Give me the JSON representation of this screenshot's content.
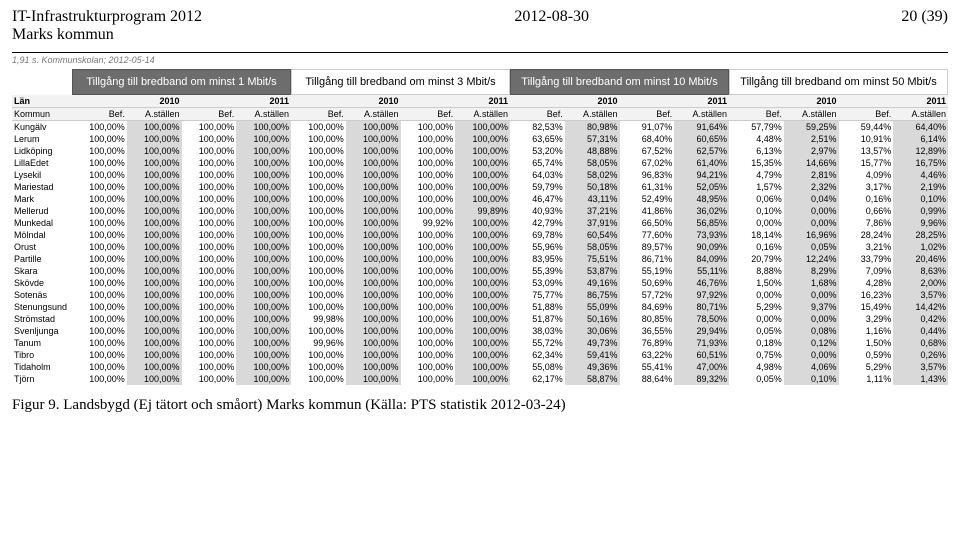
{
  "header": {
    "title_line1": "IT-Infrastrukturprogram 2012",
    "title_line2": "Marks kommun",
    "date": "2012-08-30",
    "page": "20 (39)"
  },
  "subnote": "1,91 s. Kommunskolan; 2012-05-14",
  "groups": [
    {
      "label": "Tillgång till bredband om minst 1 Mbit/s",
      "dark": true
    },
    {
      "label": "Tillgång till bredband om minst 3 Mbit/s",
      "dark": false
    },
    {
      "label": "Tillgång till bredband om minst 10 Mbit/s",
      "dark": true
    },
    {
      "label": "Tillgång till bredband om minst 50 Mbit/s",
      "dark": false
    }
  ],
  "years": [
    "2010",
    "2011",
    "2010",
    "2011",
    "2010",
    "2011",
    "2010",
    "2011"
  ],
  "subheads": {
    "lan": "Län",
    "kommun": "Kommun",
    "bef": "Bef.",
    "ast": "A.ställen"
  },
  "rows": [
    {
      "name": "Kungälv",
      "cells": [
        "100,00%",
        "100,00%",
        "100,00%",
        "100,00%",
        "100,00%",
        "100,00%",
        "100,00%",
        "100,00%",
        "82,53%",
        "80,98%",
        "91,07%",
        "91,64%",
        "57,79%",
        "59,25%",
        "59,44%",
        "64,40%"
      ]
    },
    {
      "name": "Lerum",
      "cells": [
        "100,00%",
        "100,00%",
        "100,00%",
        "100,00%",
        "100,00%",
        "100,00%",
        "100,00%",
        "100,00%",
        "63,65%",
        "57,31%",
        "68,40%",
        "60,65%",
        "4,48%",
        "2,51%",
        "10,91%",
        "6,14%"
      ]
    },
    {
      "name": "Lidköping",
      "cells": [
        "100,00%",
        "100,00%",
        "100,00%",
        "100,00%",
        "100,00%",
        "100,00%",
        "100,00%",
        "100,00%",
        "53,20%",
        "48,88%",
        "67,52%",
        "62,57%",
        "6,13%",
        "2,97%",
        "13,57%",
        "12,89%"
      ]
    },
    {
      "name": "LillaEdet",
      "cells": [
        "100,00%",
        "100,00%",
        "100,00%",
        "100,00%",
        "100,00%",
        "100,00%",
        "100,00%",
        "100,00%",
        "65,74%",
        "58,05%",
        "67,02%",
        "61,40%",
        "15,35%",
        "14,66%",
        "15,77%",
        "16,75%"
      ]
    },
    {
      "name": "Lysekil",
      "cells": [
        "100,00%",
        "100,00%",
        "100,00%",
        "100,00%",
        "100,00%",
        "100,00%",
        "100,00%",
        "100,00%",
        "64,03%",
        "58,02%",
        "96,83%",
        "94,21%",
        "4,79%",
        "2,81%",
        "4,09%",
        "4,46%"
      ]
    },
    {
      "name": "Mariestad",
      "cells": [
        "100,00%",
        "100,00%",
        "100,00%",
        "100,00%",
        "100,00%",
        "100,00%",
        "100,00%",
        "100,00%",
        "59,79%",
        "50,18%",
        "61,31%",
        "52,05%",
        "1,57%",
        "2,32%",
        "3,17%",
        "2,19%"
      ]
    },
    {
      "name": "Mark",
      "cells": [
        "100,00%",
        "100,00%",
        "100,00%",
        "100,00%",
        "100,00%",
        "100,00%",
        "100,00%",
        "100,00%",
        "46,47%",
        "43,11%",
        "52,49%",
        "48,95%",
        "0,06%",
        "0,04%",
        "0,16%",
        "0,10%"
      ]
    },
    {
      "name": "Mellerud",
      "cells": [
        "100,00%",
        "100,00%",
        "100,00%",
        "100,00%",
        "100,00%",
        "100,00%",
        "100,00%",
        "99,89%",
        "40,93%",
        "37,21%",
        "41,86%",
        "36,02%",
        "0,10%",
        "0,00%",
        "0,66%",
        "0,99%"
      ]
    },
    {
      "name": "Munkedal",
      "cells": [
        "100,00%",
        "100,00%",
        "100,00%",
        "100,00%",
        "100,00%",
        "100,00%",
        "99,92%",
        "100,00%",
        "42,79%",
        "37,91%",
        "66,50%",
        "56,85%",
        "0,00%",
        "0,00%",
        "7,86%",
        "9,96%"
      ]
    },
    {
      "name": "Mölndal",
      "cells": [
        "100,00%",
        "100,00%",
        "100,00%",
        "100,00%",
        "100,00%",
        "100,00%",
        "100,00%",
        "100,00%",
        "69,78%",
        "60,54%",
        "77,60%",
        "73,93%",
        "18,14%",
        "16,96%",
        "28,24%",
        "28,25%"
      ]
    },
    {
      "name": "Orust",
      "cells": [
        "100,00%",
        "100,00%",
        "100,00%",
        "100,00%",
        "100,00%",
        "100,00%",
        "100,00%",
        "100,00%",
        "55,96%",
        "58,05%",
        "89,57%",
        "90,09%",
        "0,16%",
        "0,05%",
        "3,21%",
        "1,02%"
      ]
    },
    {
      "name": "Partille",
      "cells": [
        "100,00%",
        "100,00%",
        "100,00%",
        "100,00%",
        "100,00%",
        "100,00%",
        "100,00%",
        "100,00%",
        "83,95%",
        "75,51%",
        "86,71%",
        "84,09%",
        "20,79%",
        "12,24%",
        "33,79%",
        "20,46%"
      ]
    },
    {
      "name": "Skara",
      "cells": [
        "100,00%",
        "100,00%",
        "100,00%",
        "100,00%",
        "100,00%",
        "100,00%",
        "100,00%",
        "100,00%",
        "55,39%",
        "53,87%",
        "55,19%",
        "55,11%",
        "8,88%",
        "8,29%",
        "7,09%",
        "8,63%"
      ]
    },
    {
      "name": "Skövde",
      "cells": [
        "100,00%",
        "100,00%",
        "100,00%",
        "100,00%",
        "100,00%",
        "100,00%",
        "100,00%",
        "100,00%",
        "53,09%",
        "49,16%",
        "50,69%",
        "46,76%",
        "1,50%",
        "1,68%",
        "4,28%",
        "2,00%"
      ]
    },
    {
      "name": "Sotenäs",
      "cells": [
        "100,00%",
        "100,00%",
        "100,00%",
        "100,00%",
        "100,00%",
        "100,00%",
        "100,00%",
        "100,00%",
        "75,77%",
        "86,75%",
        "57,72%",
        "97,92%",
        "0,00%",
        "0,00%",
        "16,23%",
        "3,57%"
      ]
    },
    {
      "name": "Stenungsund",
      "cells": [
        "100,00%",
        "100,00%",
        "100,00%",
        "100,00%",
        "100,00%",
        "100,00%",
        "100,00%",
        "100,00%",
        "51,88%",
        "55,09%",
        "84,69%",
        "80,71%",
        "5,29%",
        "9,37%",
        "15,49%",
        "14,42%"
      ]
    },
    {
      "name": "Strömstad",
      "cells": [
        "100,00%",
        "100,00%",
        "100,00%",
        "100,00%",
        "99,98%",
        "100,00%",
        "100,00%",
        "100,00%",
        "51,87%",
        "50,16%",
        "80,85%",
        "78,50%",
        "0,00%",
        "0,00%",
        "3,29%",
        "0,42%"
      ]
    },
    {
      "name": "Svenljunga",
      "cells": [
        "100,00%",
        "100,00%",
        "100,00%",
        "100,00%",
        "100,00%",
        "100,00%",
        "100,00%",
        "100,00%",
        "38,03%",
        "30,06%",
        "36,55%",
        "29,94%",
        "0,05%",
        "0,08%",
        "1,16%",
        "0,44%"
      ]
    },
    {
      "name": "Tanum",
      "cells": [
        "100,00%",
        "100,00%",
        "100,00%",
        "100,00%",
        "99,96%",
        "100,00%",
        "100,00%",
        "100,00%",
        "55,72%",
        "49,73%",
        "76,89%",
        "71,93%",
        "0,18%",
        "0,12%",
        "1,50%",
        "0,68%"
      ]
    },
    {
      "name": "Tibro",
      "cells": [
        "100,00%",
        "100,00%",
        "100,00%",
        "100,00%",
        "100,00%",
        "100,00%",
        "100,00%",
        "100,00%",
        "62,34%",
        "59,41%",
        "63,22%",
        "60,51%",
        "0,75%",
        "0,00%",
        "0,59%",
        "0,26%"
      ]
    },
    {
      "name": "Tidaholm",
      "cells": [
        "100,00%",
        "100,00%",
        "100,00%",
        "100,00%",
        "100,00%",
        "100,00%",
        "100,00%",
        "100,00%",
        "55,08%",
        "49,36%",
        "55,41%",
        "47,00%",
        "4,98%",
        "4,06%",
        "5,29%",
        "3,57%"
      ]
    },
    {
      "name": "Tjörn",
      "cells": [
        "100,00%",
        "100,00%",
        "100,00%",
        "100,00%",
        "100,00%",
        "100,00%",
        "100,00%",
        "100,00%",
        "62,17%",
        "58,87%",
        "88,64%",
        "89,32%",
        "0,05%",
        "0,10%",
        "1,11%",
        "1,43%"
      ]
    }
  ],
  "caption": "Figur 9. Landsbygd (Ej tätort och småort) Marks kommun (Källa: PTS statistik 2012-03-24)",
  "colors": {
    "dark_header": "#6d6d6d",
    "shade": "#d9d9d9"
  }
}
